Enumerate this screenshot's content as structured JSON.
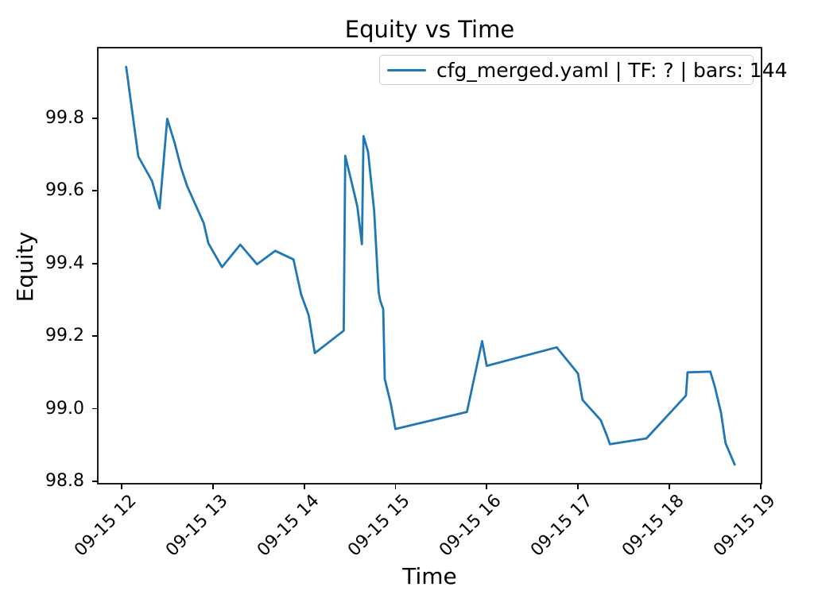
{
  "title": "Equity vs Time",
  "legend": {
    "label": "cfg_merged.yaml | TF: ? | bars: 144",
    "line_color": "#1f77b4"
  },
  "chart_data": {
    "type": "line",
    "title": "Equity vs Time",
    "xlabel": "Time",
    "ylabel": "Equity",
    "grid": false,
    "legend_position": "upper right",
    "legend_entries": [
      "cfg_merged.yaml | TF: ? | bars: 144"
    ],
    "y_ticks": [
      98.8,
      99.0,
      99.2,
      99.4,
      99.6,
      99.8
    ],
    "x_tick_labels": [
      "09-15 12",
      "09-15 13",
      "09-15 14",
      "09-15 15",
      "09-15 16",
      "09-15 17",
      "09-15 18",
      "09-15 19"
    ],
    "ylim": [
      98.791,
      99.997
    ],
    "xlim_minutes": [
      703.8,
      1141.2
    ],
    "series": [
      {
        "name": "cfg_merged.yaml | TF: ? | bars: 144",
        "color": "#1f77b4",
        "points": [
          [
            "09-15 12:03",
            99.942
          ],
          [
            "09-15 12:11",
            99.695
          ],
          [
            "09-15 12:20",
            99.627
          ],
          [
            "09-15 12:25",
            99.552
          ],
          [
            "09-15 12:30",
            99.799
          ],
          [
            "09-15 12:35",
            99.73
          ],
          [
            "09-15 12:39",
            99.665
          ],
          [
            "09-15 12:43",
            99.614
          ],
          [
            "09-15 12:54",
            99.511
          ],
          [
            "09-15 12:57",
            99.456
          ],
          [
            "09-15 13:06",
            99.39
          ],
          [
            "09-15 13:18",
            99.452
          ],
          [
            "09-15 13:29",
            99.398
          ],
          [
            "09-15 13:41",
            99.435
          ],
          [
            "09-15 13:53",
            99.411
          ],
          [
            "09-15 13:58",
            99.315
          ],
          [
            "09-15 14:03",
            99.257
          ],
          [
            "09-15 14:07",
            99.153
          ],
          [
            "09-15 14:26",
            99.215
          ],
          [
            "09-15 14:27",
            99.697
          ],
          [
            "09-15 14:33",
            99.592
          ],
          [
            "09-15 14:35",
            99.556
          ],
          [
            "09-15 14:38",
            99.453
          ],
          [
            "09-15 14:39",
            99.751
          ],
          [
            "09-15 14:42",
            99.708
          ],
          [
            "09-15 14:46",
            99.545
          ],
          [
            "09-15 14:48",
            99.393
          ],
          [
            "09-15 14:49",
            99.32
          ],
          [
            "09-15 14:50",
            99.298
          ],
          [
            "09-15 14:52",
            99.274
          ],
          [
            "09-15 14:53",
            99.082
          ],
          [
            "09-15 14:57",
            99.013
          ],
          [
            "09-15 15:00",
            98.944
          ],
          [
            "09-15 15:47",
            98.991
          ],
          [
            "09-15 15:57",
            99.186
          ],
          [
            "09-15 16:00",
            99.118
          ],
          [
            "09-15 16:46",
            99.169
          ],
          [
            "09-15 17:00",
            99.097
          ],
          [
            "09-15 17:03",
            99.024
          ],
          [
            "09-15 17:15",
            98.968
          ],
          [
            "09-15 17:19",
            98.926
          ],
          [
            "09-15 17:21",
            98.902
          ],
          [
            "09-15 17:45",
            98.918
          ],
          [
            "09-15 18:11",
            99.036
          ],
          [
            "09-15 18:12",
            99.1
          ],
          [
            "09-15 18:27",
            99.102
          ],
          [
            "09-15 18:30",
            99.06
          ],
          [
            "09-15 18:34",
            98.989
          ],
          [
            "09-15 18:37",
            98.905
          ],
          [
            "09-15 18:43",
            98.846
          ]
        ]
      }
    ]
  }
}
